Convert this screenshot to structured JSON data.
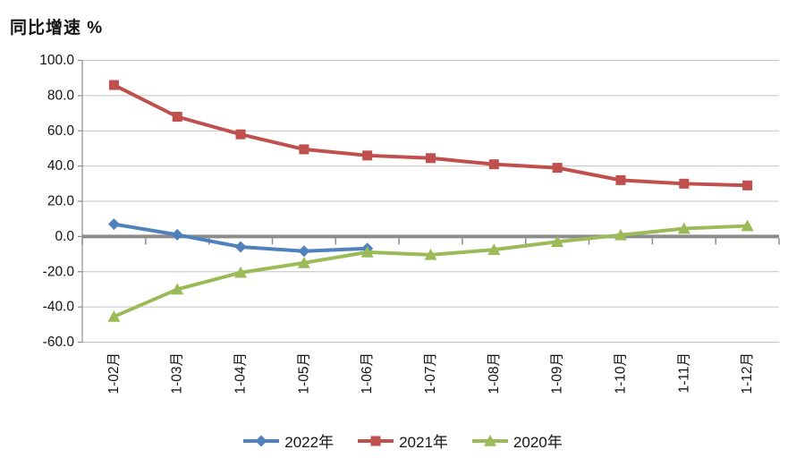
{
  "title": "同比增速 %",
  "chart_data": {
    "type": "line",
    "title": "同比增速 %",
    "xlabel": "",
    "ylabel": "同比增速 %",
    "categories": [
      "1-02月",
      "1-03月",
      "1-04月",
      "1-05月",
      "1-06月",
      "1-07月",
      "1-08月",
      "1-09月",
      "1-10月",
      "1-11月",
      "1-12月"
    ],
    "series": [
      {
        "name": "2022年",
        "marker": "diamond",
        "color": "#4F81BD",
        "values": [
          7.0,
          1.0,
          -5.9,
          -8.3,
          -6.8
        ]
      },
      {
        "name": "2021年",
        "marker": "square",
        "color": "#C0504D",
        "values": [
          86.0,
          68.0,
          58.0,
          49.5,
          46.0,
          44.5,
          41.0,
          39.0,
          32.0,
          30.0,
          29.0
        ]
      },
      {
        "name": "2020年",
        "marker": "triangle",
        "color": "#9BBB59",
        "values": [
          -45.5,
          -30.0,
          -20.5,
          -15.0,
          -8.9,
          -10.4,
          -7.5,
          -3.0,
          0.8,
          4.5,
          6.0
        ]
      }
    ],
    "ylim": [
      -60,
      100
    ],
    "y_tick_step": 20,
    "y_ticks": [
      "100.0",
      "80.0",
      "60.0",
      "40.0",
      "20.0",
      "0.0",
      "-20.0",
      "-40.0",
      "-60.0"
    ],
    "grid": true,
    "legend_position": "bottom",
    "colors": {
      "gridline": "#C3C3C3",
      "axis": "#8C8C8C",
      "zero_axis": "#8C8C8C",
      "tick": "#8C8C8C",
      "label_text": "#141414"
    }
  }
}
